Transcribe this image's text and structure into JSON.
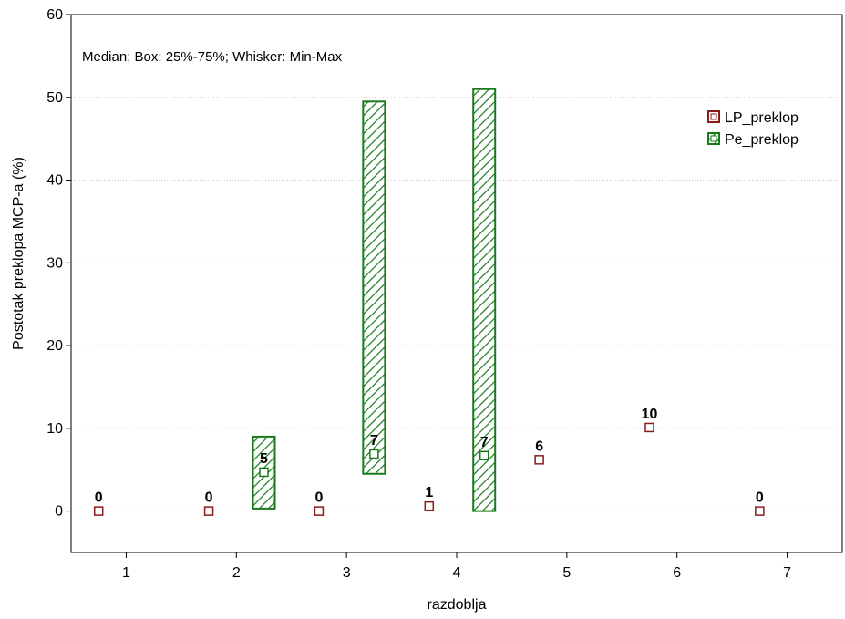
{
  "chart_data": {
    "type": "box",
    "title": "",
    "note": "Median; Box: 25%-75%; Whisker: Min-Max",
    "xlabel": "razdoblja",
    "ylabel": "Postotak preklopa MCP-a (%)",
    "xlim": [
      0.5,
      7.5
    ],
    "ylim": [
      -5,
      60
    ],
    "xticks": [
      1,
      2,
      3,
      4,
      5,
      6,
      7
    ],
    "yticks": [
      0,
      10,
      20,
      30,
      40,
      50,
      60
    ],
    "grid": true,
    "legend_position": "top-right",
    "series": [
      {
        "name": "LP_preklop",
        "color": "#8b1a1a",
        "offset": -0.25,
        "points": [
          {
            "x": 1,
            "median": 0,
            "q1": 0,
            "q3": 0,
            "label": "0"
          },
          {
            "x": 2,
            "median": 0,
            "q1": 0,
            "q3": 0,
            "label": "0"
          },
          {
            "x": 3,
            "median": 0,
            "q1": 0,
            "q3": 0,
            "label": "0"
          },
          {
            "x": 4,
            "median": 0.6,
            "q1": 0.6,
            "q3": 0.6,
            "label": "1"
          },
          {
            "x": 5,
            "median": 6.2,
            "q1": 6.2,
            "q3": 6.2,
            "label": "6"
          },
          {
            "x": 6,
            "median": 10.1,
            "q1": 10.1,
            "q3": 10.1,
            "label": "10"
          },
          {
            "x": 7,
            "median": 0,
            "q1": 0,
            "q3": 0,
            "label": "0"
          }
        ]
      },
      {
        "name": "Pe_preklop",
        "color": "#1a7a1a",
        "offset": 0.25,
        "points": [
          {
            "x": 2,
            "median": 4.7,
            "q1": 0.3,
            "q3": 9.0,
            "label": "5"
          },
          {
            "x": 3,
            "median": 6.9,
            "q1": 4.5,
            "q3": 49.5,
            "label": "7"
          },
          {
            "x": 4,
            "median": 6.7,
            "q1": 0,
            "q3": 51.0,
            "label": "7"
          }
        ]
      }
    ]
  }
}
